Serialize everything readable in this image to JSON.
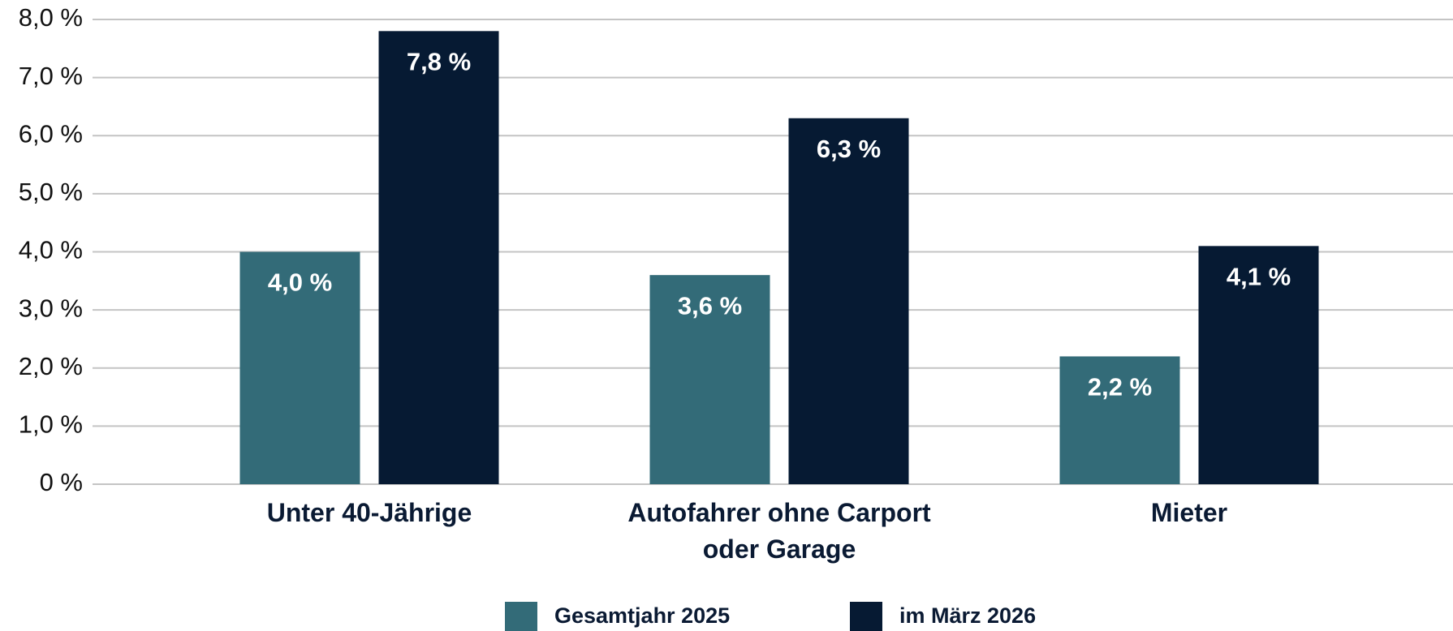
{
  "chart_data": {
    "type": "bar",
    "categories": [
      "Unter 40-Jährige",
      "Autofahrer ohne Carport oder Garage",
      "Mieter"
    ],
    "series": [
      {
        "name": "Gesamtjahr 2025",
        "color": "#336b78",
        "values": [
          4.0,
          3.6,
          2.2
        ],
        "value_labels": [
          "4,0 %",
          "3,6 %",
          "2,2 %"
        ]
      },
      {
        "name": "im März 2026",
        "color": "#061a33",
        "values": [
          7.8,
          6.3,
          4.1
        ],
        "value_labels": [
          "7,8 %",
          "6,3 %",
          "4,1 %"
        ]
      }
    ],
    "ylim": [
      0,
      8
    ],
    "yticks": [
      {
        "value": 0,
        "label": "0 %"
      },
      {
        "value": 1,
        "label": "1,0 %"
      },
      {
        "value": 2,
        "label": "2,0 %"
      },
      {
        "value": 3,
        "label": "3,0 %"
      },
      {
        "value": 4,
        "label": "4,0 %"
      },
      {
        "value": 5,
        "label": "5,0 %"
      },
      {
        "value": 6,
        "label": "6,0 %"
      },
      {
        "value": 7,
        "label": "7,0 %"
      },
      {
        "value": 8,
        "label": "8,0 %"
      }
    ],
    "grid": true,
    "legend": "bottom"
  }
}
